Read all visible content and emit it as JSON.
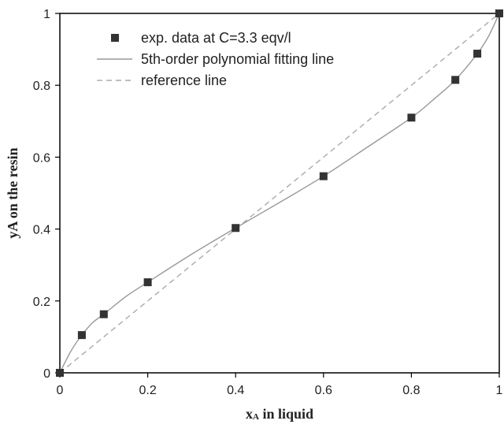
{
  "chart_data": {
    "type": "scatter",
    "xlabel_main": "x",
    "xlabel_sub": "A",
    "xlabel_rest": " in liquid",
    "ylabel": "yA on the resin",
    "xlim": [
      0,
      1
    ],
    "ylim": [
      0,
      1
    ],
    "x_ticks": [
      "0",
      "0.2",
      "0.4",
      "0.6",
      "0.8",
      "1"
    ],
    "y_ticks": [
      "0",
      "0.2",
      "0.4",
      "0.6",
      "0.8",
      "1"
    ],
    "grid": false,
    "legend_position": "top-left",
    "series": [
      {
        "name": "exp. data at C=3.3 eqv/l",
        "kind": "markers",
        "marker": "square",
        "color": "#333333",
        "x": [
          0,
          0.05,
          0.1,
          0.2,
          0.4,
          0.6,
          0.8,
          0.9,
          0.95,
          1.0
        ],
        "y": [
          0,
          0.105,
          0.163,
          0.252,
          0.403,
          0.547,
          0.71,
          0.815,
          0.888,
          1.0
        ]
      },
      {
        "name": "5th-order polynomial fitting line",
        "kind": "line",
        "style": "solid",
        "color": "#999999",
        "x": [
          0,
          0.025,
          0.05,
          0.075,
          0.1,
          0.15,
          0.2,
          0.3,
          0.4,
          0.5,
          0.6,
          0.7,
          0.8,
          0.85,
          0.9,
          0.95,
          0.975,
          1.0
        ],
        "y": [
          0,
          0.06,
          0.105,
          0.14,
          0.163,
          0.212,
          0.252,
          0.33,
          0.403,
          0.474,
          0.547,
          0.628,
          0.71,
          0.76,
          0.815,
          0.888,
          0.935,
          1.0
        ]
      },
      {
        "name": "reference line",
        "kind": "line",
        "style": "dashed",
        "color": "#aaaaaa",
        "x": [
          0,
          1
        ],
        "y": [
          0,
          1
        ]
      }
    ]
  }
}
